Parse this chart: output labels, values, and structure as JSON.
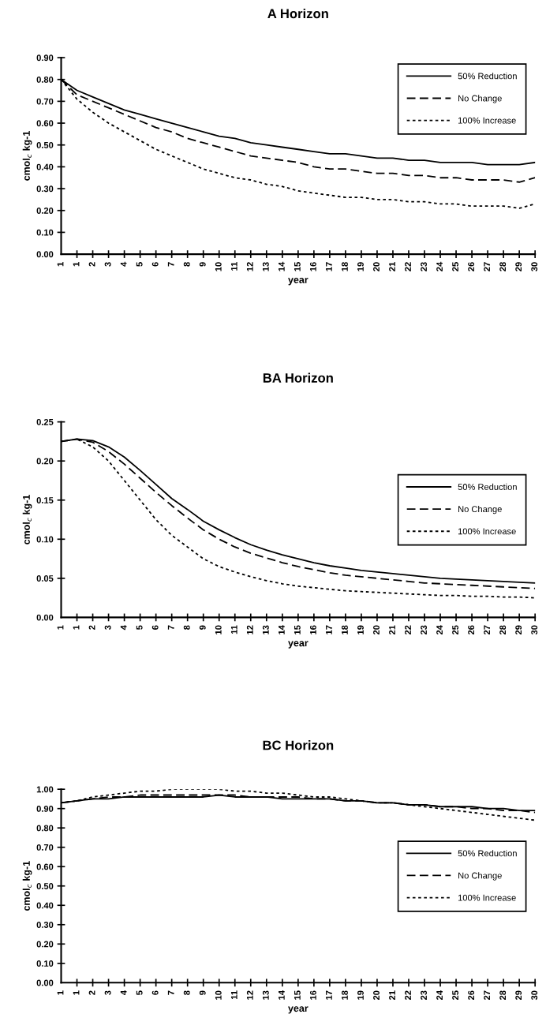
{
  "chart_data": [
    {
      "type": "line",
      "title": "A Horizon",
      "xlabel": "year",
      "ylabel": "cmol$_{c}$ kg-1",
      "legend": "top right",
      "grid": false,
      "marker": "none",
      "categories": [
        "1",
        "1",
        "2",
        "3",
        "4",
        "5",
        "6",
        "7",
        "8",
        "9",
        "10",
        "11",
        "12",
        "13",
        "14",
        "15",
        "16",
        "17",
        "18",
        "19",
        "20",
        "21",
        "22",
        "23",
        "24",
        "25",
        "26",
        "27",
        "28",
        "29",
        "30"
      ],
      "ylim": [
        0,
        0.9
      ],
      "yticks": [
        {
          "value": 0,
          "label": "0.00"
        },
        {
          "value": 0.1,
          "label": "0.10"
        },
        {
          "value": 0.2,
          "label": "0.20"
        },
        {
          "value": 0.3,
          "label": "0.30"
        },
        {
          "value": 0.4,
          "label": "0.40"
        },
        {
          "value": 0.5,
          "label": "0.50"
        },
        {
          "value": 0.6,
          "label": "0.60"
        },
        {
          "value": 0.7,
          "label": "0.70"
        },
        {
          "value": 0.8,
          "label": "0.80"
        },
        {
          "value": 0.9,
          "label": "0.90"
        }
      ],
      "series": [
        {
          "name": "50% Reduction",
          "color": "#000000",
          "line_style": "solid",
          "values": [
            0.8,
            0.75,
            0.72,
            0.69,
            0.66,
            0.64,
            0.62,
            0.6,
            0.58,
            0.56,
            0.54,
            0.53,
            0.51,
            0.5,
            0.49,
            0.48,
            0.47,
            0.46,
            0.46,
            0.45,
            0.44,
            0.44,
            0.43,
            0.43,
            0.42,
            0.42,
            0.42,
            0.41,
            0.41,
            0.41,
            0.42
          ]
        },
        {
          "name": "No Change",
          "color": "#000000",
          "line_style": "dashed",
          "values": [
            0.8,
            0.73,
            0.7,
            0.67,
            0.64,
            0.61,
            0.58,
            0.56,
            0.53,
            0.51,
            0.49,
            0.47,
            0.45,
            0.44,
            0.43,
            0.42,
            0.4,
            0.39,
            0.39,
            0.38,
            0.37,
            0.37,
            0.36,
            0.36,
            0.35,
            0.35,
            0.34,
            0.34,
            0.34,
            0.33,
            0.35
          ]
        },
        {
          "name": "100% Increase",
          "color": "#000000",
          "line_style": "dotted",
          "values": [
            0.8,
            0.71,
            0.65,
            0.6,
            0.56,
            0.52,
            0.48,
            0.45,
            0.42,
            0.39,
            0.37,
            0.35,
            0.34,
            0.32,
            0.31,
            0.29,
            0.28,
            0.27,
            0.26,
            0.26,
            0.25,
            0.25,
            0.24,
            0.24,
            0.23,
            0.23,
            0.22,
            0.22,
            0.22,
            0.21,
            0.23
          ]
        }
      ]
    },
    {
      "type": "line",
      "title": "BA Horizon",
      "xlabel": "year",
      "ylabel": "cmol$_{c}$ kg-1",
      "legend": "right",
      "grid": false,
      "marker": "none",
      "categories": [
        "1",
        "1",
        "2",
        "3",
        "4",
        "5",
        "6",
        "7",
        "8",
        "9",
        "10",
        "11",
        "12",
        "13",
        "14",
        "15",
        "16",
        "17",
        "18",
        "19",
        "20",
        "21",
        "22",
        "23",
        "24",
        "25",
        "26",
        "27",
        "28",
        "29",
        "30"
      ],
      "ylim": [
        0,
        0.25
      ],
      "yticks": [
        {
          "value": 0,
          "label": "0.00"
        },
        {
          "value": 0.05,
          "label": "0.05"
        },
        {
          "value": 0.1,
          "label": "0.10"
        },
        {
          "value": 0.15,
          "label": "0.15"
        },
        {
          "value": 0.2,
          "label": "0.20"
        },
        {
          "value": 0.25,
          "label": "0.25"
        }
      ],
      "series": [
        {
          "name": "50% Reduction",
          "color": "#000000",
          "line_style": "solid",
          "values": [
            0.225,
            0.228,
            0.226,
            0.218,
            0.205,
            0.188,
            0.17,
            0.152,
            0.138,
            0.123,
            0.112,
            0.102,
            0.093,
            0.086,
            0.08,
            0.075,
            0.07,
            0.066,
            0.063,
            0.06,
            0.058,
            0.056,
            0.054,
            0.052,
            0.05,
            0.049,
            0.048,
            0.047,
            0.046,
            0.045,
            0.044
          ]
        },
        {
          "name": "No Change",
          "color": "#000000",
          "line_style": "dashed",
          "values": [
            0.225,
            0.228,
            0.224,
            0.212,
            0.196,
            0.178,
            0.16,
            0.143,
            0.127,
            0.112,
            0.1,
            0.09,
            0.082,
            0.076,
            0.07,
            0.065,
            0.061,
            0.057,
            0.054,
            0.052,
            0.05,
            0.048,
            0.046,
            0.044,
            0.043,
            0.042,
            0.041,
            0.04,
            0.039,
            0.038,
            0.037
          ]
        },
        {
          "name": "100% Increase",
          "color": "#000000",
          "line_style": "dotted",
          "values": [
            0.225,
            0.228,
            0.218,
            0.2,
            0.175,
            0.15,
            0.125,
            0.105,
            0.09,
            0.075,
            0.065,
            0.058,
            0.052,
            0.047,
            0.043,
            0.04,
            0.038,
            0.036,
            0.034,
            0.033,
            0.032,
            0.031,
            0.03,
            0.029,
            0.028,
            0.028,
            0.027,
            0.027,
            0.026,
            0.026,
            0.025
          ]
        }
      ]
    },
    {
      "type": "line",
      "title": "BC Horizon",
      "xlabel": "year",
      "ylabel": "cmol$_{c}$ kg-1",
      "legend": "right",
      "grid": false,
      "marker": "none",
      "categories": [
        "1",
        "1",
        "2",
        "3",
        "4",
        "5",
        "6",
        "7",
        "8",
        "9",
        "10",
        "11",
        "12",
        "13",
        "14",
        "15",
        "16",
        "17",
        "18",
        "19",
        "20",
        "21",
        "22",
        "23",
        "24",
        "25",
        "26",
        "27",
        "28",
        "29",
        "30"
      ],
      "ylim": [
        0,
        1.0
      ],
      "yticks": [
        {
          "value": 0,
          "label": "0.00"
        },
        {
          "value": 0.1,
          "label": "0.10"
        },
        {
          "value": 0.2,
          "label": "0.20"
        },
        {
          "value": 0.3,
          "label": "0.30"
        },
        {
          "value": 0.4,
          "label": "0.40"
        },
        {
          "value": 0.5,
          "label": "0.50"
        },
        {
          "value": 0.6,
          "label": "0.60"
        },
        {
          "value": 0.7,
          "label": "0.70"
        },
        {
          "value": 0.8,
          "label": "0.80"
        },
        {
          "value": 0.9,
          "label": "0.90"
        },
        {
          "value": 1.0,
          "label": "1.00"
        }
      ],
      "series": [
        {
          "name": "50% Reduction",
          "color": "#000000",
          "line_style": "solid",
          "values": [
            0.93,
            0.94,
            0.95,
            0.95,
            0.96,
            0.96,
            0.96,
            0.96,
            0.96,
            0.96,
            0.97,
            0.96,
            0.96,
            0.96,
            0.95,
            0.95,
            0.95,
            0.95,
            0.94,
            0.94,
            0.93,
            0.93,
            0.92,
            0.92,
            0.91,
            0.91,
            0.91,
            0.9,
            0.9,
            0.89,
            0.89
          ]
        },
        {
          "name": "No Change",
          "color": "#000000",
          "line_style": "dashed",
          "values": [
            0.93,
            0.94,
            0.95,
            0.96,
            0.96,
            0.97,
            0.97,
            0.97,
            0.97,
            0.97,
            0.97,
            0.97,
            0.96,
            0.96,
            0.96,
            0.96,
            0.95,
            0.95,
            0.94,
            0.94,
            0.93,
            0.93,
            0.92,
            0.92,
            0.91,
            0.91,
            0.9,
            0.9,
            0.89,
            0.89,
            0.88
          ]
        },
        {
          "name": "100% Increase",
          "color": "#000000",
          "line_style": "dotted",
          "values": [
            0.93,
            0.94,
            0.96,
            0.97,
            0.98,
            0.99,
            0.99,
            1.0,
            1.0,
            1.0,
            1.0,
            0.99,
            0.99,
            0.98,
            0.98,
            0.97,
            0.96,
            0.96,
            0.95,
            0.94,
            0.93,
            0.93,
            0.92,
            0.91,
            0.9,
            0.89,
            0.88,
            0.87,
            0.86,
            0.85,
            0.84
          ]
        }
      ]
    }
  ]
}
